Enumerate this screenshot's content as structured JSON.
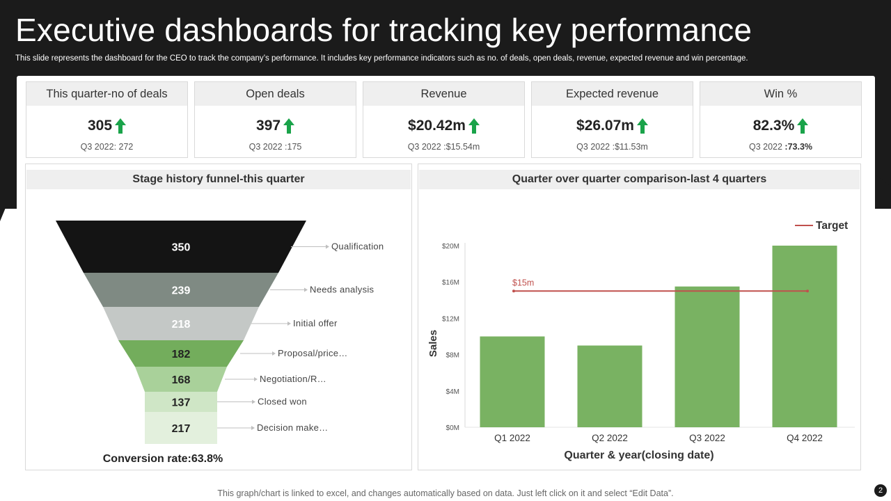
{
  "slide": {
    "title": "Executive dashboards for tracking key performance",
    "subtitle": "This slide represents the dashboard for the CEO to track the company’s performance. It includes key performance indicators such as no. of deals, open deals, revenue, expected revenue and win percentage.",
    "footer_note": "This graph/chart is linked to excel, and changes automatically based on data. Just left click on it and select “Edit Data”.",
    "page_number": "2"
  },
  "colors": {
    "dark": "#1b1b1b",
    "arrow_green": "#1aa34a",
    "bar_green": "#79b262",
    "target_red": "#c0504d"
  },
  "kpis": [
    {
      "label": "This quarter-no of deals",
      "value": "305",
      "prev_label": "Q3 2022:",
      "prev_value": "272",
      "arrow": "up-arrow-icon"
    },
    {
      "label": "Open deals",
      "value": "397",
      "prev_label": "Q3 2022",
      "prev_value": ":175",
      "arrow": "up-arrow-icon"
    },
    {
      "label": "Revenue",
      "value": "$20.42m",
      "prev_label": "Q3 2022",
      "prev_value": ":$15.54m",
      "arrow": "up-arrow-icon"
    },
    {
      "label": "Expected revenue",
      "value": "$26.07m",
      "prev_label": "Q3 2022",
      "prev_value": ":$11.53m",
      "arrow": "up-arrow-icon"
    },
    {
      "label": "Win %",
      "value": "82.3%",
      "prev_label": "Q3 2022",
      "prev_value": ":73.3%",
      "arrow": "up-arrow-icon"
    }
  ],
  "funnel": {
    "title": "Stage history funnel-this quarter",
    "conversion_rate": "Conversion rate:63.8%"
  },
  "qoq": {
    "title": "Quarter over quarter comparison-last 4 quarters"
  },
  "chart_data": [
    {
      "type": "funnel",
      "title": "Stage history funnel-this quarter",
      "stages": [
        "Qualification",
        "Needs analysis",
        "Initial offer",
        "Proposal/price…",
        "Negotiation/R…",
        "Closed won",
        "Decision make…"
      ],
      "values": [
        350,
        239,
        218,
        182,
        168,
        137,
        217
      ],
      "colors": [
        "#141414",
        "#7f8a83",
        "#c4c8c6",
        "#73ad5c",
        "#a9d19a",
        "#cfe6c6",
        "#e3f0dd"
      ],
      "label_colors": [
        "#ffffff",
        "#ffffff",
        "#ffffff",
        "#222222",
        "#222222",
        "#222222",
        "#222222"
      ]
    },
    {
      "type": "bar",
      "title": "Quarter over quarter comparison-last 4 quarters",
      "categories": [
        "Q1 2022",
        "Q2 2022",
        "Q3 2022",
        "Q4 2022"
      ],
      "values": [
        10,
        9,
        15.5,
        20
      ],
      "value_unit": "$M",
      "xlabel": "Quarter & year(closing date)",
      "ylabel": "Sales",
      "ylim": [
        0,
        20
      ],
      "yticks": [
        0,
        4,
        8,
        12,
        16,
        20
      ],
      "ytick_labels": [
        "$0M",
        "$4M",
        "$8M",
        "$12M",
        "$16M",
        "$20M"
      ],
      "target": {
        "name": "Target",
        "value": 15,
        "label": "$15m"
      },
      "legend": "top-right",
      "grid": false
    }
  ]
}
